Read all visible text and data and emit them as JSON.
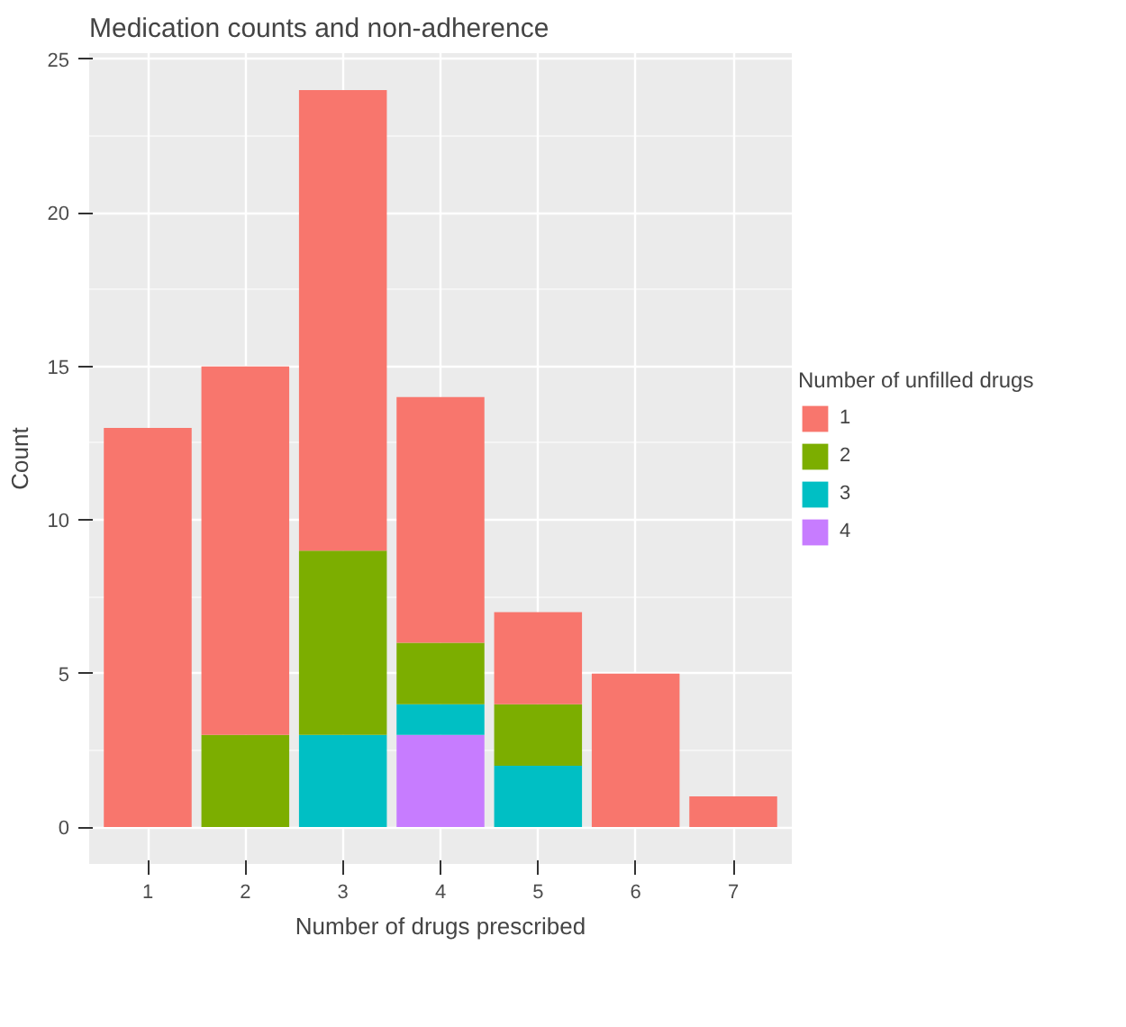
{
  "chart_data": {
    "type": "bar",
    "title": "Medication counts and non-adherence",
    "xlabel": "Number of drugs prescribed",
    "ylabel": "Count",
    "legend_title": "Number of unfilled drugs",
    "categories": [
      "1",
      "2",
      "3",
      "4",
      "5",
      "6",
      "7"
    ],
    "stacked": true,
    "series": [
      {
        "name": "4",
        "color": "#c77cff",
        "values": [
          0,
          0,
          0,
          3,
          0,
          0,
          0
        ]
      },
      {
        "name": "3",
        "color": "#00bfc4",
        "values": [
          0,
          0,
          3,
          1,
          2,
          0,
          0
        ]
      },
      {
        "name": "2",
        "color": "#7cae00",
        "values": [
          0,
          3,
          6,
          2,
          2,
          0,
          0
        ]
      },
      {
        "name": "1",
        "color": "#f8766d",
        "values": [
          13,
          12,
          15,
          8,
          3,
          5,
          1
        ]
      }
    ],
    "ylim": [
      -1.2,
      25.2
    ],
    "yticks": [
      0,
      5,
      10,
      15,
      20,
      25
    ],
    "grid": true,
    "legend": "right"
  }
}
